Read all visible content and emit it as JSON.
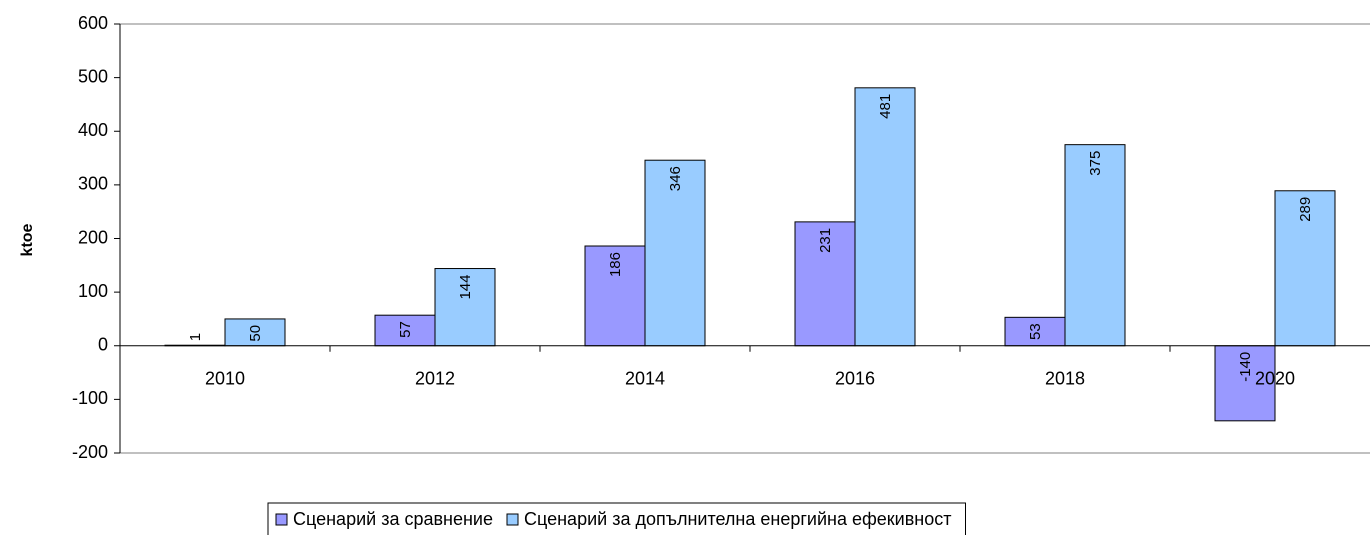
{
  "chart_data": {
    "type": "bar",
    "y_label": "ktoe",
    "categories": [
      "2010",
      "2012",
      "2014",
      "2016",
      "2018",
      "2020"
    ],
    "series": [
      {
        "name": "Сценарий за сравнение",
        "color": "#9999ff",
        "values": [
          1,
          57,
          186,
          231,
          53,
          -140
        ]
      },
      {
        "name": "Сценарий за допълнителна енергийна ефекивност",
        "color": "#99ccff",
        "values": [
          50,
          144,
          346,
          481,
          375,
          289
        ]
      }
    ],
    "ylim": [
      -200,
      600
    ],
    "yticks": [
      -200,
      -100,
      0,
      100,
      200,
      300,
      400,
      500,
      600
    ],
    "grid": false,
    "legend": "bottom"
  }
}
